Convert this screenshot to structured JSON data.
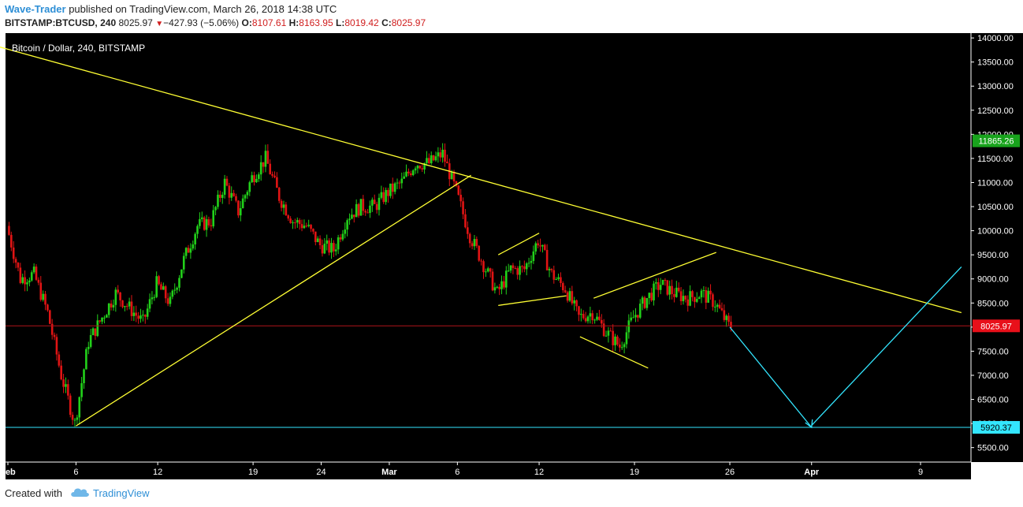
{
  "header": {
    "author": "Wave-Trader",
    "published_text": "published on TradingView.com, March 26, 2018 14:38 UTC",
    "symbol": "BITSTAMP:BTCUSD, 240",
    "last": "8025.97",
    "change": "−427.93 (−5.06%)",
    "o_label": "O:",
    "o_value": "8107.61",
    "h_label": "H:",
    "h_value": "8163.95",
    "l_label": "L:",
    "l_value": "8019.42",
    "c_label": "C:",
    "c_value": "8025.97"
  },
  "footer": {
    "created_with": "Created with",
    "brand": "TradingView"
  },
  "colors": {
    "up": "#22d11a",
    "down": "#e01414",
    "trendline": "#ffff33",
    "projection": "#33e6ff",
    "background": "#000000"
  },
  "chart_data": {
    "type": "candlestick",
    "title": "Bitcoin / Dollar, 240, BITSTAMP",
    "ylim": [
      5200,
      14100
    ],
    "y_ticks": [
      "14000.00",
      "13500.00",
      "13000.00",
      "12500.00",
      "12000.00",
      "11500.00",
      "11000.00",
      "10500.00",
      "10000.00",
      "9500.00",
      "9000.00",
      "8500.00",
      "8000.00",
      "7500.00",
      "7000.00",
      "6500.00",
      "6000.00",
      "5500.00"
    ],
    "x_ticks": [
      {
        "label": "Feb",
        "date": "2018-02-01"
      },
      {
        "label": "6",
        "date": "2018-02-06"
      },
      {
        "label": "12",
        "date": "2018-02-12"
      },
      {
        "label": "19",
        "date": "2018-02-19"
      },
      {
        "label": "24",
        "date": "2018-02-24"
      },
      {
        "label": "Mar",
        "date": "2018-03-01"
      },
      {
        "label": "6",
        "date": "2018-03-06"
      },
      {
        "label": "12",
        "date": "2018-03-12"
      },
      {
        "label": "19",
        "date": "2018-03-19"
      },
      {
        "label": "26",
        "date": "2018-03-26"
      },
      {
        "label": "Apr",
        "date": "2018-04-01"
      },
      {
        "label": "9",
        "date": "2018-04-09"
      }
    ],
    "price_path": [
      [
        "2018-02-01",
        10100
      ],
      [
        "2018-02-02",
        9000
      ],
      [
        "2018-02-03",
        9100
      ],
      [
        "2018-02-04",
        8300
      ],
      [
        "2018-02-05",
        7000
      ],
      [
        "2018-02-06",
        6000
      ],
      [
        "2018-02-07",
        7700
      ],
      [
        "2018-02-08",
        8200
      ],
      [
        "2018-02-09",
        8700
      ],
      [
        "2018-02-10",
        8400
      ],
      [
        "2018-02-11",
        8100
      ],
      [
        "2018-02-12",
        8900
      ],
      [
        "2018-02-13",
        8500
      ],
      [
        "2018-02-14",
        9400
      ],
      [
        "2018-02-15",
        10100
      ],
      [
        "2018-02-16",
        10200
      ],
      [
        "2018-02-17",
        11000
      ],
      [
        "2018-02-18",
        10400
      ],
      [
        "2018-02-19",
        11100
      ],
      [
        "2018-02-20",
        11500
      ],
      [
        "2018-02-21",
        10700
      ],
      [
        "2018-02-22",
        10200
      ],
      [
        "2018-02-23",
        10100
      ],
      [
        "2018-02-24",
        9700
      ],
      [
        "2018-02-25",
        9600
      ],
      [
        "2018-02-26",
        10300
      ],
      [
        "2018-02-27",
        10500
      ],
      [
        "2018-02-28",
        10500
      ],
      [
        "2018-03-01",
        10800
      ],
      [
        "2018-03-02",
        11000
      ],
      [
        "2018-03-03",
        11400
      ],
      [
        "2018-03-04",
        11400
      ],
      [
        "2018-03-05",
        11600
      ],
      [
        "2018-03-06",
        10800
      ],
      [
        "2018-03-07",
        9900
      ],
      [
        "2018-03-08",
        9300
      ],
      [
        "2018-03-09",
        8700
      ],
      [
        "2018-03-10",
        9200
      ],
      [
        "2018-03-11",
        9200
      ],
      [
        "2018-03-12",
        9800
      ],
      [
        "2018-03-13",
        9100
      ],
      [
        "2018-03-14",
        8800
      ],
      [
        "2018-03-15",
        8200
      ],
      [
        "2018-03-16",
        8300
      ],
      [
        "2018-03-17",
        7900
      ],
      [
        "2018-03-18",
        7600
      ],
      [
        "2018-03-19",
        8200
      ],
      [
        "2018-03-20",
        8600
      ],
      [
        "2018-03-21",
        8900
      ],
      [
        "2018-03-22",
        8700
      ],
      [
        "2018-03-23",
        8600
      ],
      [
        "2018-03-24",
        8700
      ],
      [
        "2018-03-25",
        8500
      ],
      [
        "2018-03-26",
        8025.97
      ]
    ],
    "annotations": {
      "upper_trendline": [
        [
          "2018-01-29",
          14000
        ],
        [
          "2018-04-12",
          8300
        ]
      ],
      "rising_support": [
        [
          "2018-02-06",
          5950
        ],
        [
          "2018-03-07",
          11150
        ]
      ],
      "flag_upper": [
        [
          "2018-03-09",
          9500
        ],
        [
          "2018-03-12",
          9950
        ]
      ],
      "flag_lower": [
        [
          "2018-03-09",
          8450
        ],
        [
          "2018-03-14",
          8650
        ]
      ],
      "wedge_upper": [
        [
          "2018-03-16",
          8600
        ],
        [
          "2018-03-25",
          9550
        ]
      ],
      "wedge_lower": [
        [
          "2018-03-15",
          7800
        ],
        [
          "2018-03-20",
          7150
        ]
      ],
      "projection_down": [
        [
          "2018-03-26",
          8000
        ],
        [
          "2018-04-01",
          5920
        ]
      ],
      "projection_up": [
        [
          "2018-04-01",
          5960
        ],
        [
          "2018-04-12",
          9250
        ]
      ]
    },
    "price_labels": [
      {
        "value": 11865.26,
        "text": "11865.26",
        "color": "#18a31c"
      },
      {
        "value": 8025.97,
        "text": "8025.97",
        "color": "#e8101a"
      },
      {
        "value": 5920.37,
        "text": "5920.37",
        "color": "#33e6ff"
      }
    ]
  }
}
